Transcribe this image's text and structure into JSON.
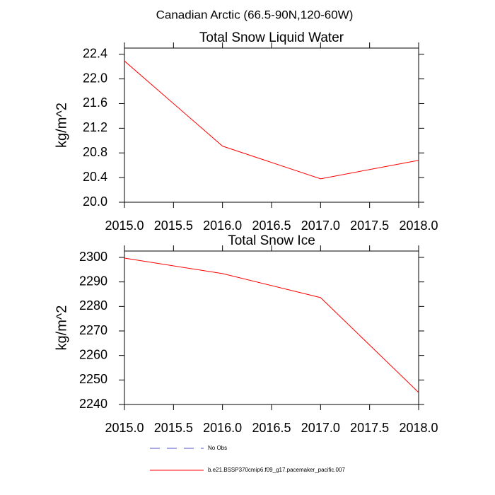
{
  "title": "Canadian Arctic (66.5-90N,120-60W)",
  "chart_data": [
    {
      "type": "line",
      "title": "Total Snow Liquid Water",
      "ylabel": "kg/m^2",
      "x": [
        2015,
        2016,
        2017,
        2018
      ],
      "series": [
        {
          "color": "#ff0000",
          "values": [
            22.29,
            20.91,
            20.38,
            20.68
          ]
        }
      ],
      "xlim": [
        2015,
        2018
      ],
      "xticks": [
        {
          "value": 2015,
          "label": "2015.0"
        },
        2015.5,
        {
          "value": 2016,
          "label": "2016.0"
        },
        2016.5,
        {
          "value": 2017,
          "label": "2017.0"
        },
        2017.5,
        {
          "value": 2018,
          "label": "2018.0"
        }
      ],
      "ylim": [
        20.0,
        22.5
      ],
      "yticks": [
        {
          "value": 20,
          "label": "20.0"
        },
        20.4,
        20.8,
        21.2,
        21.6,
        {
          "value": 22,
          "label": "22.0"
        },
        22.4
      ]
    },
    {
      "type": "line",
      "title": "Total Snow Ice",
      "ylabel": "kg/m^2",
      "x": [
        2015,
        2016,
        2017,
        2018
      ],
      "series": [
        {
          "color": "#ff0000",
          "values": [
            2299.7,
            2293.4,
            2283.6,
            2244.9
          ]
        }
      ],
      "xlim": [
        2015,
        2018
      ],
      "xticks": [
        {
          "value": 2015,
          "label": "2015.0"
        },
        2015.5,
        {
          "value": 2016,
          "label": "2016.0"
        },
        2016.5,
        {
          "value": 2017,
          "label": "2017.0"
        },
        2017.5,
        {
          "value": 2018,
          "label": "2018.0"
        }
      ],
      "ylim": [
        2240,
        2302.6
      ],
      "yticks": [
        2240,
        2250,
        2260,
        2270,
        2280,
        2290,
        2300
      ]
    }
  ],
  "legend": [
    {
      "name": "No Obs",
      "color": "#5050c8",
      "dashed": true
    },
    {
      "name": "b.e21.BSSP370cmip6.f09_g17.pacemaker_pacific.007",
      "color": "#ff0000",
      "dashed": false
    }
  ]
}
